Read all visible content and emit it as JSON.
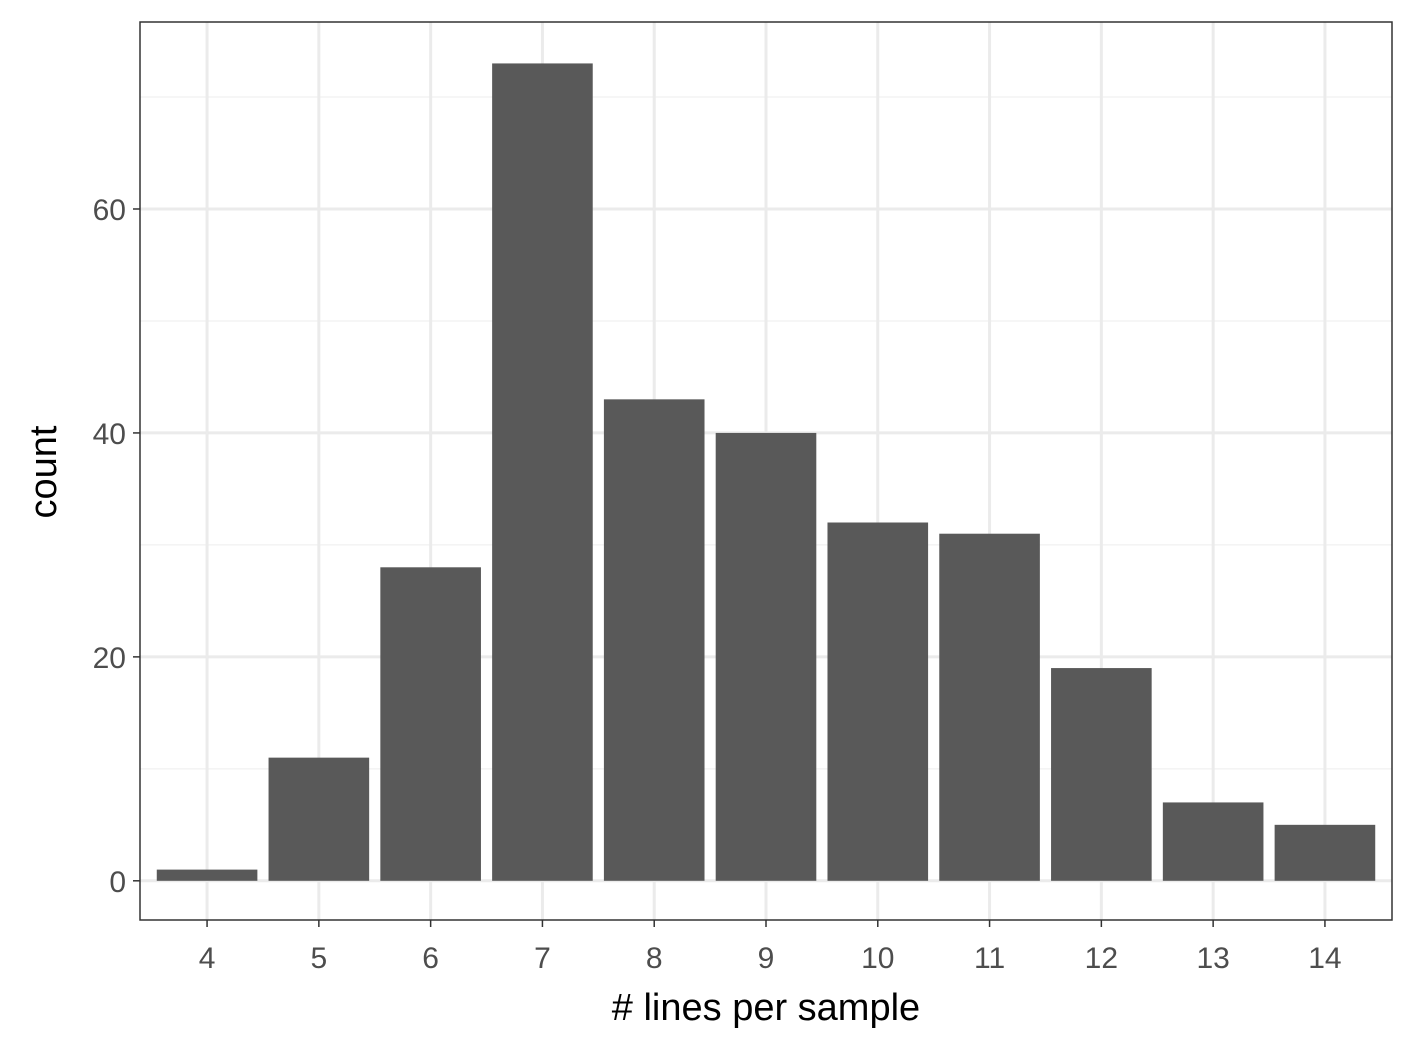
{
  "chart_data": {
    "type": "bar",
    "title": "",
    "xlabel": "# lines per sample",
    "ylabel": "count",
    "categories": [
      "4",
      "5",
      "6",
      "7",
      "8",
      "9",
      "10",
      "11",
      "12",
      "13",
      "14"
    ],
    "values": [
      1,
      11,
      28,
      73,
      43,
      40,
      32,
      31,
      19,
      7,
      5
    ],
    "ylim": [
      -3.5,
      76.7
    ],
    "y_major_ticks": [
      0,
      20,
      40,
      60
    ],
    "y_minor_ticks": [
      10,
      30,
      50,
      70
    ],
    "grid": true,
    "legend": "none",
    "colors": {
      "bar": "#595959",
      "panel_border": "#333333",
      "grid_major": "#ebebeb",
      "grid_minor": "#f3f3f3",
      "tick_label": "#4d4d4d",
      "axis_title": "#000000"
    }
  }
}
